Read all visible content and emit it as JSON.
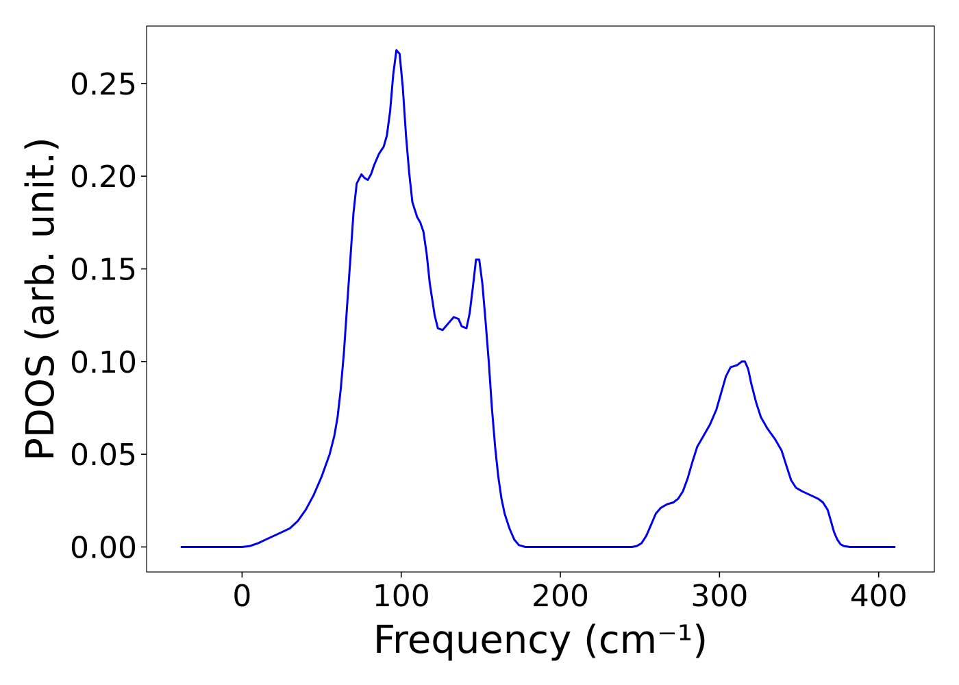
{
  "chart_data": {
    "type": "line",
    "xlabel": "Frequency (cm⁻¹)",
    "ylabel": "PDOS (arb. unit.)",
    "xlim": [
      -60,
      435
    ],
    "ylim": [
      -0.0135,
      0.281
    ],
    "x_ticks": [
      0,
      100,
      200,
      300,
      400
    ],
    "x_tick_labels": [
      "0",
      "100",
      "200",
      "300",
      "400"
    ],
    "y_ticks": [
      0.0,
      0.05,
      0.1,
      0.15,
      0.2,
      0.25
    ],
    "y_tick_labels": [
      "0.00",
      "0.05",
      "0.10",
      "0.15",
      "0.20",
      "0.25"
    ],
    "grid": false,
    "legend": "none",
    "series": [
      {
        "color": "#0000ee",
        "points": [
          [
            -38,
            0.0
          ],
          [
            -20,
            0.0
          ],
          [
            0,
            0.0
          ],
          [
            5,
            0.0005
          ],
          [
            10,
            0.002
          ],
          [
            15,
            0.004
          ],
          [
            20,
            0.006
          ],
          [
            25,
            0.008
          ],
          [
            30,
            0.01
          ],
          [
            35,
            0.014
          ],
          [
            40,
            0.02
          ],
          [
            45,
            0.028
          ],
          [
            50,
            0.038
          ],
          [
            55,
            0.05
          ],
          [
            58,
            0.06
          ],
          [
            60,
            0.07
          ],
          [
            62,
            0.085
          ],
          [
            64,
            0.105
          ],
          [
            66,
            0.13
          ],
          [
            68,
            0.155
          ],
          [
            70,
            0.18
          ],
          [
            72,
            0.196
          ],
          [
            75,
            0.201
          ],
          [
            77,
            0.199
          ],
          [
            79,
            0.198
          ],
          [
            81,
            0.201
          ],
          [
            83,
            0.206
          ],
          [
            86,
            0.212
          ],
          [
            89,
            0.216
          ],
          [
            91,
            0.222
          ],
          [
            93,
            0.235
          ],
          [
            95,
            0.255
          ],
          [
            97,
            0.268
          ],
          [
            99,
            0.266
          ],
          [
            101,
            0.248
          ],
          [
            103,
            0.222
          ],
          [
            105,
            0.202
          ],
          [
            107,
            0.186
          ],
          [
            110,
            0.178
          ],
          [
            112,
            0.175
          ],
          [
            114,
            0.17
          ],
          [
            116,
            0.158
          ],
          [
            118,
            0.142
          ],
          [
            121,
            0.125
          ],
          [
            123,
            0.118
          ],
          [
            126,
            0.117
          ],
          [
            128,
            0.119
          ],
          [
            131,
            0.122
          ],
          [
            133,
            0.124
          ],
          [
            136,
            0.123
          ],
          [
            138,
            0.119
          ],
          [
            141,
            0.118
          ],
          [
            143,
            0.126
          ],
          [
            145,
            0.14
          ],
          [
            147,
            0.155
          ],
          [
            149,
            0.155
          ],
          [
            151,
            0.142
          ],
          [
            153,
            0.122
          ],
          [
            155,
            0.1
          ],
          [
            157,
            0.075
          ],
          [
            159,
            0.054
          ],
          [
            161,
            0.038
          ],
          [
            163,
            0.026
          ],
          [
            165,
            0.018
          ],
          [
            168,
            0.01
          ],
          [
            171,
            0.004
          ],
          [
            174,
            0.001
          ],
          [
            178,
            0.0
          ],
          [
            200,
            0.0
          ],
          [
            230,
            0.0
          ],
          [
            245,
            0.0
          ],
          [
            248,
            0.0005
          ],
          [
            251,
            0.002
          ],
          [
            254,
            0.006
          ],
          [
            257,
            0.012
          ],
          [
            260,
            0.018
          ],
          [
            263,
            0.021
          ],
          [
            267,
            0.023
          ],
          [
            271,
            0.024
          ],
          [
            274,
            0.026
          ],
          [
            277,
            0.03
          ],
          [
            280,
            0.037
          ],
          [
            283,
            0.046
          ],
          [
            286,
            0.054
          ],
          [
            290,
            0.06
          ],
          [
            294,
            0.066
          ],
          [
            298,
            0.074
          ],
          [
            301,
            0.083
          ],
          [
            304,
            0.092
          ],
          [
            307,
            0.097
          ],
          [
            311,
            0.098
          ],
          [
            314,
            0.1
          ],
          [
            316,
            0.1
          ],
          [
            318,
            0.096
          ],
          [
            320,
            0.088
          ],
          [
            323,
            0.078
          ],
          [
            326,
            0.07
          ],
          [
            330,
            0.064
          ],
          [
            335,
            0.058
          ],
          [
            339,
            0.052
          ],
          [
            342,
            0.044
          ],
          [
            345,
            0.036
          ],
          [
            348,
            0.032
          ],
          [
            352,
            0.03
          ],
          [
            357,
            0.028
          ],
          [
            362,
            0.026
          ],
          [
            365,
            0.024
          ],
          [
            368,
            0.02
          ],
          [
            370,
            0.014
          ],
          [
            372,
            0.008
          ],
          [
            374,
            0.004
          ],
          [
            376,
            0.0015
          ],
          [
            378,
            0.0005
          ],
          [
            382,
            0.0
          ],
          [
            400,
            0.0
          ],
          [
            410,
            0.0
          ]
        ]
      }
    ]
  }
}
